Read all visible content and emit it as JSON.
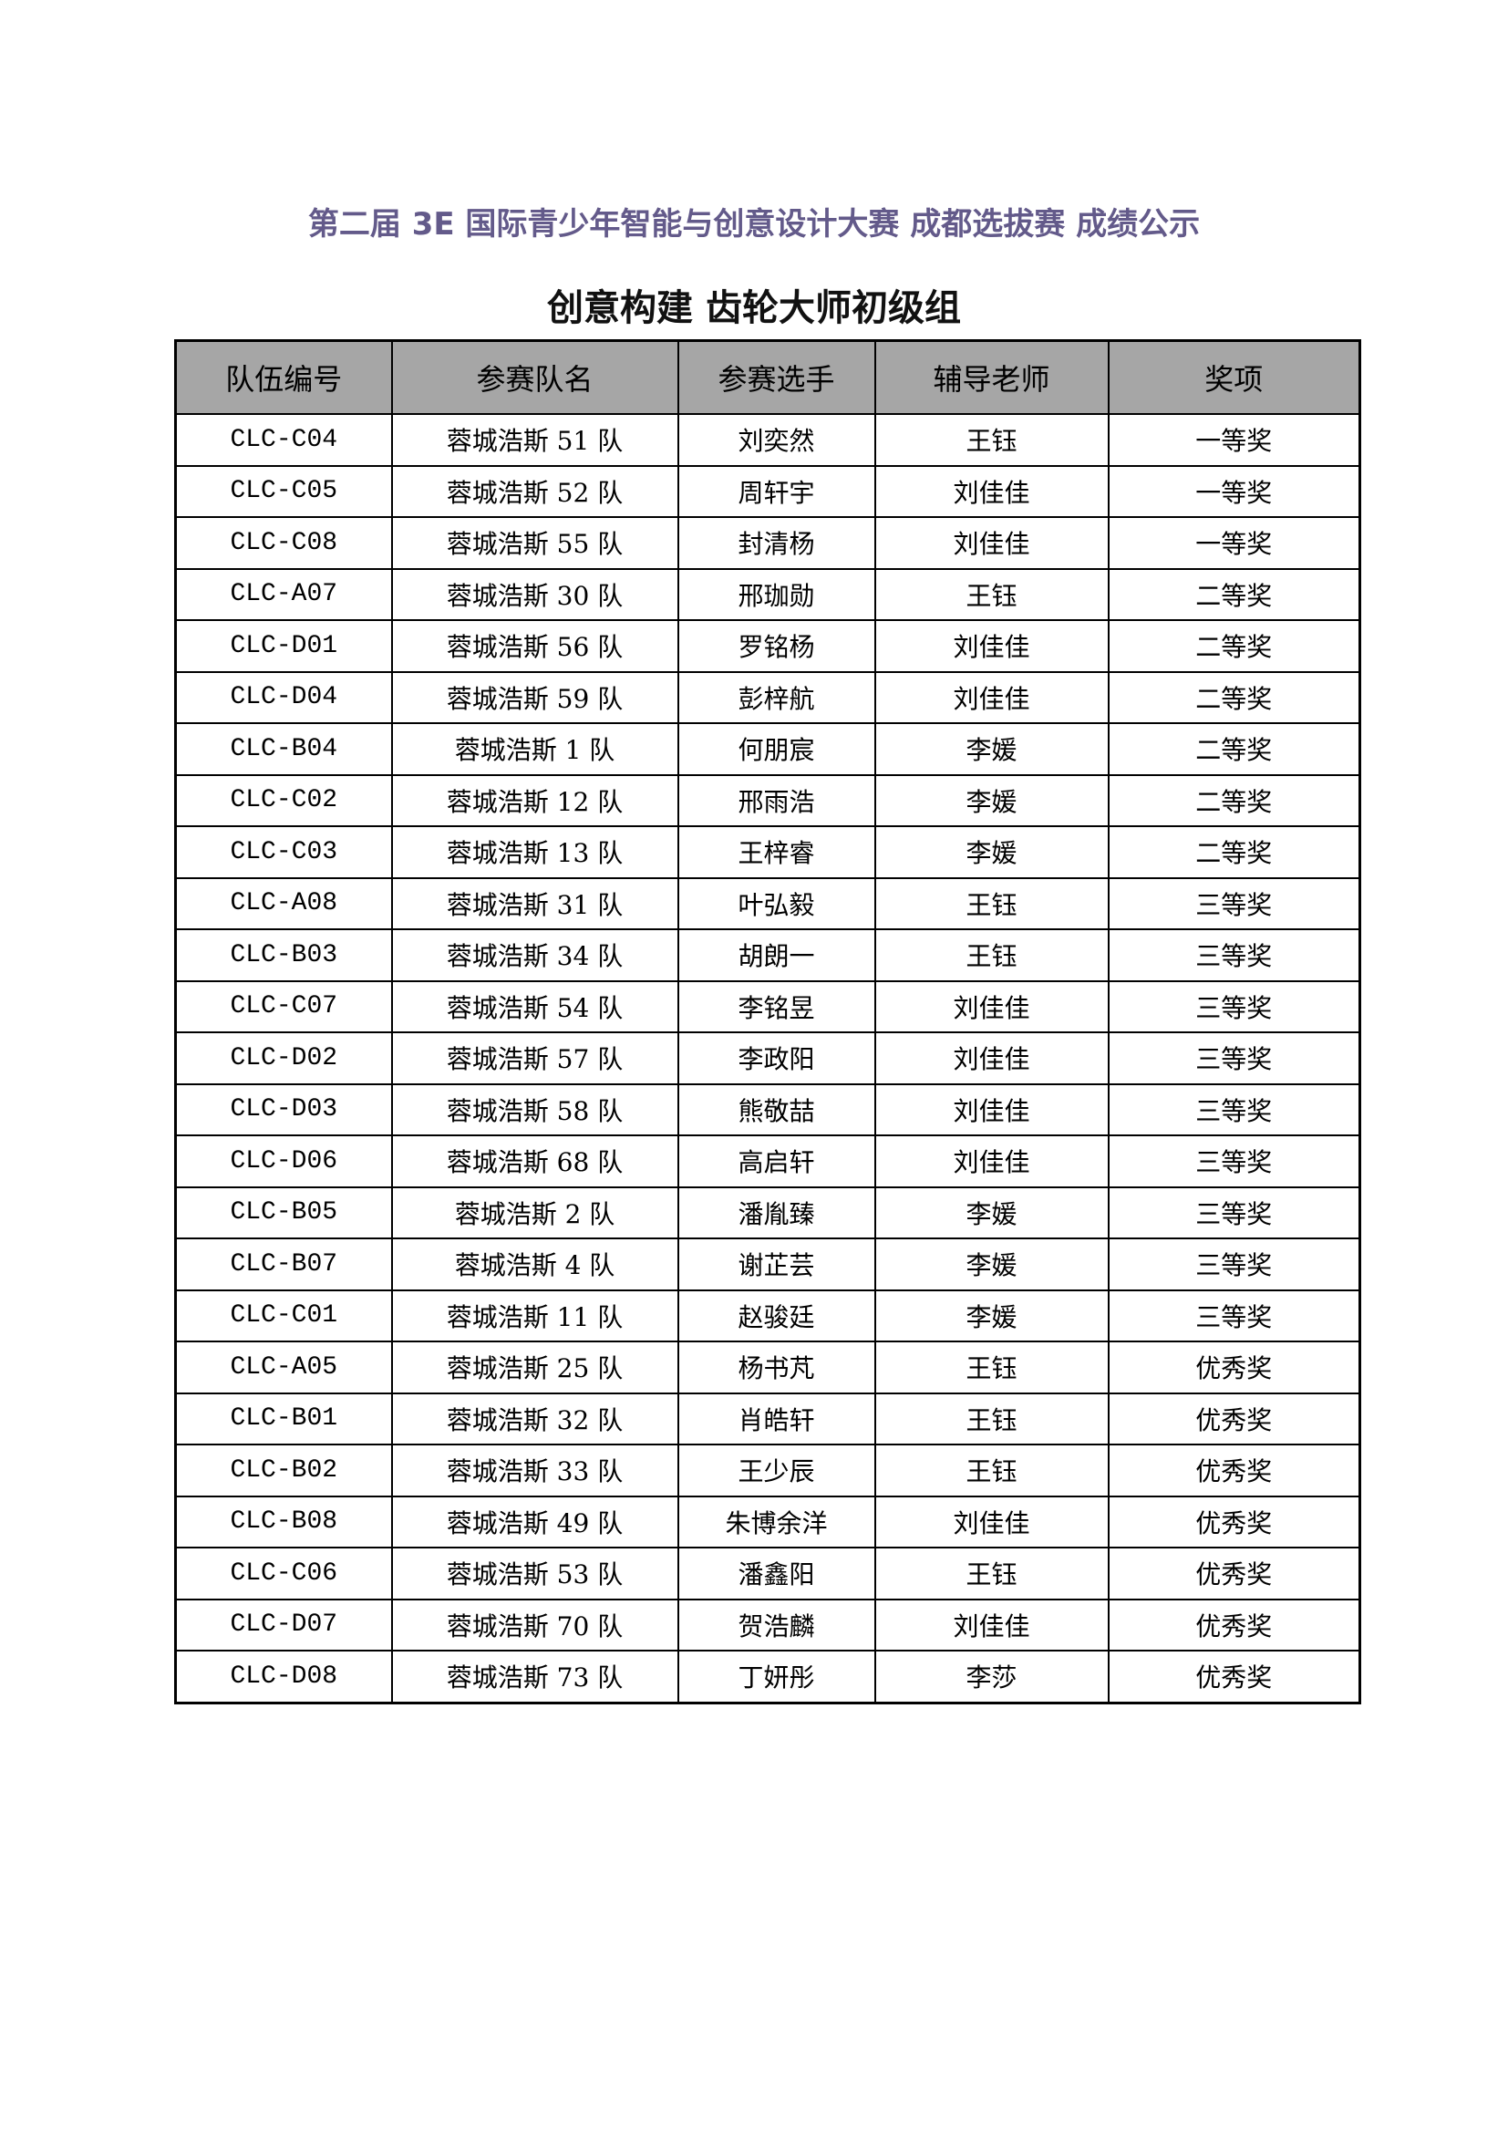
{
  "title": "第二届 3E 国际青少年智能与创意设计大赛  成都选拔赛  成绩公示",
  "subtitle": "创意构建  齿轮大师初级组",
  "table": {
    "headers": [
      "队伍编号",
      "参赛队名",
      "参赛选手",
      "辅导老师",
      "奖项"
    ],
    "rows": [
      [
        "CLC-C04",
        "蓉城浩斯 51 队",
        "刘奕然",
        "王钰",
        "一等奖"
      ],
      [
        "CLC-C05",
        "蓉城浩斯 52 队",
        "周轩宇",
        "刘佳佳",
        "一等奖"
      ],
      [
        "CLC-C08",
        "蓉城浩斯 55 队",
        "封清杨",
        "刘佳佳",
        "一等奖"
      ],
      [
        "CLC-A07",
        "蓉城浩斯 30 队",
        "邢珈勋",
        "王钰",
        "二等奖"
      ],
      [
        "CLC-D01",
        "蓉城浩斯 56 队",
        "罗铭杨",
        "刘佳佳",
        "二等奖"
      ],
      [
        "CLC-D04",
        "蓉城浩斯 59 队",
        "彭梓航",
        "刘佳佳",
        "二等奖"
      ],
      [
        "CLC-B04",
        "蓉城浩斯 1 队",
        "何朋宸",
        "李媛",
        "二等奖"
      ],
      [
        "CLC-C02",
        "蓉城浩斯 12 队",
        "邢雨浩",
        "李媛",
        "二等奖"
      ],
      [
        "CLC-C03",
        "蓉城浩斯 13 队",
        "王梓睿",
        "李媛",
        "二等奖"
      ],
      [
        "CLC-A08",
        "蓉城浩斯 31 队",
        "叶弘毅",
        "王钰",
        "三等奖"
      ],
      [
        "CLC-B03",
        "蓉城浩斯 34 队",
        "胡朗一",
        "王钰",
        "三等奖"
      ],
      [
        "CLC-C07",
        "蓉城浩斯 54 队",
        "李铭昱",
        "刘佳佳",
        "三等奖"
      ],
      [
        "CLC-D02",
        "蓉城浩斯 57 队",
        "李政阳",
        "刘佳佳",
        "三等奖"
      ],
      [
        "CLC-D03",
        "蓉城浩斯 58 队",
        "熊敬喆",
        "刘佳佳",
        "三等奖"
      ],
      [
        "CLC-D06",
        "蓉城浩斯 68 队",
        "高启轩",
        "刘佳佳",
        "三等奖"
      ],
      [
        "CLC-B05",
        "蓉城浩斯 2 队",
        "潘胤臻",
        "李媛",
        "三等奖"
      ],
      [
        "CLC-B07",
        "蓉城浩斯 4 队",
        "谢芷芸",
        "李媛",
        "三等奖"
      ],
      [
        "CLC-C01",
        "蓉城浩斯 11 队",
        "赵骏廷",
        "李媛",
        "三等奖"
      ],
      [
        "CLC-A05",
        "蓉城浩斯 25 队",
        "杨书芃",
        "王钰",
        "优秀奖"
      ],
      [
        "CLC-B01",
        "蓉城浩斯 32 队",
        "肖皓轩",
        "王钰",
        "优秀奖"
      ],
      [
        "CLC-B02",
        "蓉城浩斯 33 队",
        "王少辰",
        "王钰",
        "优秀奖"
      ],
      [
        "CLC-B08",
        "蓉城浩斯 49 队",
        "朱博余洋",
        "刘佳佳",
        "优秀奖"
      ],
      [
        "CLC-C06",
        "蓉城浩斯 53 队",
        "潘鑫阳",
        "王钰",
        "优秀奖"
      ],
      [
        "CLC-D07",
        "蓉城浩斯 70 队",
        "贺浩麟",
        "刘佳佳",
        "优秀奖"
      ],
      [
        "CLC-D08",
        "蓉城浩斯 73 队",
        "丁妍彤",
        "李莎",
        "优秀奖"
      ]
    ]
  }
}
